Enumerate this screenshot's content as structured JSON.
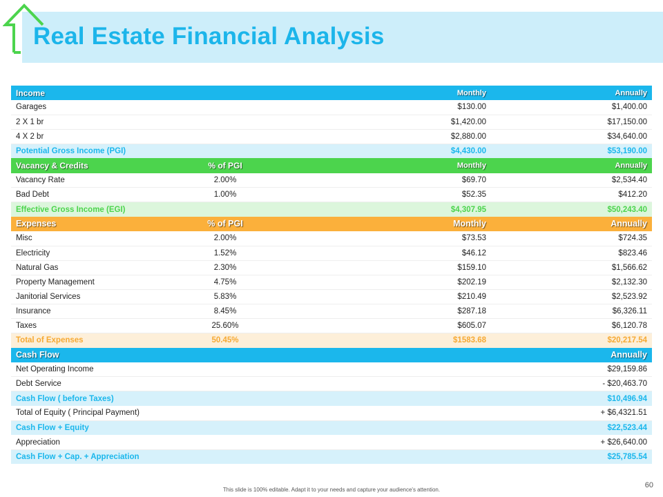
{
  "title": "Real Estate Financial Analysis",
  "colors": {
    "blue": "#1bb7ec",
    "green": "#4cd44d",
    "orange": "#fbb03b",
    "house_icon": "#4cd44d"
  },
  "income": {
    "header": [
      "Income",
      "",
      "Monthly",
      "Annually"
    ],
    "rows": [
      [
        "Garages",
        "",
        "$130.00",
        "$1,400.00"
      ],
      [
        "2 X 1 br",
        "",
        "$1,420.00",
        "$17,150.00"
      ],
      [
        "4 X 2 br",
        "",
        "$2,880.00",
        "$34,640.00"
      ]
    ],
    "total": [
      "Potential Gross Income (PGI)",
      "",
      "$4,430.00",
      "$53,190.00"
    ]
  },
  "vacancy": {
    "header": [
      "Vacancy & Credits",
      "% of PGI",
      "Monthly",
      "Annually"
    ],
    "rows": [
      [
        "Vacancy Rate",
        "2.00%",
        "$69.70",
        "$2,534.40"
      ],
      [
        "Bad Debt",
        "1.00%",
        "$52.35",
        "$412.20"
      ]
    ],
    "total": [
      "Effective Gross Income (EGI)",
      "",
      "$4,307.95",
      "$50,243.40"
    ]
  },
  "expenses": {
    "header": [
      "Expenses",
      "% of PGI",
      "Monthly",
      "Annually"
    ],
    "rows": [
      [
        "Misc",
        "2.00%",
        "$73.53",
        "$724.35"
      ],
      [
        "Electricity",
        "1.52%",
        "$46.12",
        "$823.46"
      ],
      [
        "Natural Gas",
        "2.30%",
        "$159.10",
        "$1,566.62"
      ],
      [
        "Property Management",
        "4.75%",
        "$202.19",
        "$2,132.30"
      ],
      [
        "Janitorial Services",
        "5.83%",
        "$210.49",
        "$2,523.92"
      ],
      [
        "Insurance",
        "8.45%",
        "$287.18",
        "$6,326.11"
      ],
      [
        "Taxes",
        "25.60%",
        "$605.07",
        "$6,120.78"
      ]
    ],
    "total": [
      "Total of Expenses",
      "50.45%",
      "$1583.68",
      "$20,217.54"
    ]
  },
  "cashflow": {
    "header": [
      "Cash Flow",
      "",
      "",
      "Annually"
    ],
    "rows": [
      {
        "type": "data",
        "cells": [
          "Net Operating Income",
          "",
          "",
          "$29,159.86"
        ]
      },
      {
        "type": "data",
        "cells": [
          "Debt Service",
          "",
          "",
          "- $20,463.70"
        ]
      },
      {
        "type": "sum",
        "cells": [
          "Cash Flow ( before Taxes)",
          "",
          "",
          "$10,496.94"
        ]
      },
      {
        "type": "data",
        "cells": [
          "Total of Equity ( Principal Payment)",
          "",
          "",
          "+ $6,4321.51"
        ]
      },
      {
        "type": "sum",
        "cells": [
          "Cash Flow + Equity",
          "",
          "",
          "$22,523.44"
        ]
      },
      {
        "type": "data",
        "cells": [
          "Appreciation",
          "",
          "",
          "+ $26,640.00"
        ]
      },
      {
        "type": "sum",
        "cells": [
          "Cash Flow + Cap. + Appreciation",
          "",
          "",
          "$25,785.54"
        ]
      }
    ]
  },
  "footer_note": "This slide is 100% editable. Adapt it to your needs and capture your audience's attention.",
  "page_number": "60"
}
